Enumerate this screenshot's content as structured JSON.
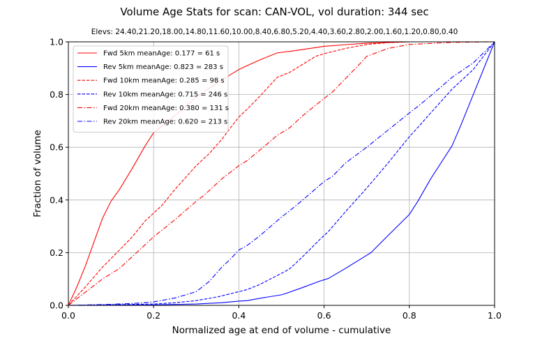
{
  "chart_data": {
    "type": "line",
    "title": "Volume Age Stats for scan: CAN-VOL, vol duration: 344 sec",
    "subtitle": "Elevs: 24.40,21.20,18.00,14.80,11.60,10.00,8.40,6.80,5.20,4.40,3.60,2.80,2.00,1.60,1.20,0.80,0.40",
    "xlabel": "Normalized age at end of volume - cumulative",
    "ylabel": "Fraction of volume",
    "xlim": [
      0.0,
      1.0
    ],
    "ylim": [
      0.0,
      1.0
    ],
    "xticks": [
      "0.0",
      "0.2",
      "0.4",
      "0.6",
      "0.8",
      "1.0"
    ],
    "yticks": [
      "0.0",
      "0.2",
      "0.4",
      "0.6",
      "0.8",
      "1.0"
    ],
    "grid": true,
    "legend_position": "top-left",
    "series": [
      {
        "name": "Fwd  5km meanAge: 0.177 = 61 s",
        "color": "#ff0000",
        "dash": "solid",
        "points": [
          [
            0,
            0
          ],
          [
            0.02,
            0.07
          ],
          [
            0.04,
            0.15
          ],
          [
            0.06,
            0.24
          ],
          [
            0.08,
            0.33
          ],
          [
            0.1,
            0.395
          ],
          [
            0.12,
            0.44
          ],
          [
            0.15,
            0.52
          ],
          [
            0.18,
            0.605
          ],
          [
            0.2,
            0.655
          ],
          [
            0.25,
            0.72
          ],
          [
            0.3,
            0.79
          ],
          [
            0.35,
            0.845
          ],
          [
            0.4,
            0.895
          ],
          [
            0.42,
            0.91
          ],
          [
            0.45,
            0.932
          ],
          [
            0.49,
            0.958
          ],
          [
            0.53,
            0.966
          ],
          [
            0.6,
            0.983
          ],
          [
            0.7,
            0.995
          ],
          [
            0.8,
            1.0
          ],
          [
            1.0,
            1.0
          ]
        ]
      },
      {
        "name": "Rev  5km meanAge: 0.823 = 283 s",
        "color": "#0000ff",
        "dash": "solid",
        "points": [
          [
            0,
            0
          ],
          [
            0.2,
            0.002
          ],
          [
            0.3,
            0.005
          ],
          [
            0.36,
            0.01
          ],
          [
            0.4,
            0.016
          ],
          [
            0.42,
            0.018
          ],
          [
            0.45,
            0.027
          ],
          [
            0.5,
            0.04
          ],
          [
            0.51,
            0.045
          ],
          [
            0.55,
            0.068
          ],
          [
            0.59,
            0.092
          ],
          [
            0.61,
            0.102
          ],
          [
            0.65,
            0.14
          ],
          [
            0.7,
            0.19
          ],
          [
            0.71,
            0.2
          ],
          [
            0.75,
            0.265
          ],
          [
            0.8,
            0.345
          ],
          [
            0.82,
            0.395
          ],
          [
            0.85,
            0.48
          ],
          [
            0.9,
            0.605
          ],
          [
            0.92,
            0.68
          ],
          [
            0.95,
            0.8
          ],
          [
            1.0,
            1.0
          ]
        ]
      },
      {
        "name": "Fwd 10km meanAge: 0.285 = 98 s",
        "color": "#ff0000",
        "dash": "dashed",
        "points": [
          [
            0,
            0
          ],
          [
            0.04,
            0.07
          ],
          [
            0.08,
            0.145
          ],
          [
            0.12,
            0.21
          ],
          [
            0.15,
            0.26
          ],
          [
            0.18,
            0.32
          ],
          [
            0.22,
            0.38
          ],
          [
            0.25,
            0.44
          ],
          [
            0.3,
            0.53
          ],
          [
            0.33,
            0.575
          ],
          [
            0.36,
            0.63
          ],
          [
            0.4,
            0.715
          ],
          [
            0.42,
            0.745
          ],
          [
            0.45,
            0.795
          ],
          [
            0.49,
            0.865
          ],
          [
            0.52,
            0.885
          ],
          [
            0.55,
            0.915
          ],
          [
            0.58,
            0.945
          ],
          [
            0.6,
            0.955
          ],
          [
            0.65,
            0.975
          ],
          [
            0.7,
            0.99
          ],
          [
            0.75,
            0.997
          ],
          [
            0.8,
            1.0
          ],
          [
            1.0,
            1.0
          ]
        ]
      },
      {
        "name": "Rev 10km meanAge: 0.715 = 246 s",
        "color": "#0000ff",
        "dash": "dashed",
        "points": [
          [
            0,
            0
          ],
          [
            0.1,
            0.002
          ],
          [
            0.2,
            0.005
          ],
          [
            0.25,
            0.01
          ],
          [
            0.3,
            0.018
          ],
          [
            0.35,
            0.032
          ],
          [
            0.4,
            0.052
          ],
          [
            0.42,
            0.06
          ],
          [
            0.45,
            0.08
          ],
          [
            0.48,
            0.105
          ],
          [
            0.51,
            0.13
          ],
          [
            0.52,
            0.14
          ],
          [
            0.55,
            0.185
          ],
          [
            0.59,
            0.25
          ],
          [
            0.61,
            0.28
          ],
          [
            0.65,
            0.355
          ],
          [
            0.7,
            0.445
          ],
          [
            0.75,
            0.54
          ],
          [
            0.8,
            0.64
          ],
          [
            0.82,
            0.675
          ],
          [
            0.85,
            0.73
          ],
          [
            0.9,
            0.82
          ],
          [
            0.95,
            0.895
          ],
          [
            1.0,
            1.0
          ]
        ]
      },
      {
        "name": "Fwd 20km meanAge: 0.380 = 131 s",
        "color": "#ff0000",
        "dash": "dashdot",
        "points": [
          [
            0,
            0
          ],
          [
            0.04,
            0.05
          ],
          [
            0.08,
            0.1
          ],
          [
            0.12,
            0.14
          ],
          [
            0.16,
            0.2
          ],
          [
            0.2,
            0.26
          ],
          [
            0.25,
            0.325
          ],
          [
            0.3,
            0.395
          ],
          [
            0.32,
            0.42
          ],
          [
            0.36,
            0.48
          ],
          [
            0.4,
            0.53
          ],
          [
            0.42,
            0.55
          ],
          [
            0.45,
            0.59
          ],
          [
            0.49,
            0.645
          ],
          [
            0.52,
            0.675
          ],
          [
            0.55,
            0.72
          ],
          [
            0.6,
            0.785
          ],
          [
            0.62,
            0.81
          ],
          [
            0.65,
            0.86
          ],
          [
            0.68,
            0.91
          ],
          [
            0.7,
            0.945
          ],
          [
            0.75,
            0.975
          ],
          [
            0.8,
            0.99
          ],
          [
            0.9,
            0.998
          ],
          [
            1.0,
            1.0
          ]
        ]
      },
      {
        "name": "Rev 20km meanAge: 0.620 = 213 s",
        "color": "#0000ff",
        "dash": "dashdot",
        "points": [
          [
            0,
            0
          ],
          [
            0.1,
            0.004
          ],
          [
            0.16,
            0.008
          ],
          [
            0.2,
            0.013
          ],
          [
            0.25,
            0.028
          ],
          [
            0.3,
            0.052
          ],
          [
            0.33,
            0.09
          ],
          [
            0.36,
            0.145
          ],
          [
            0.38,
            0.175
          ],
          [
            0.4,
            0.21
          ],
          [
            0.42,
            0.228
          ],
          [
            0.45,
            0.265
          ],
          [
            0.5,
            0.335
          ],
          [
            0.52,
            0.36
          ],
          [
            0.55,
            0.4
          ],
          [
            0.6,
            0.47
          ],
          [
            0.62,
            0.49
          ],
          [
            0.65,
            0.54
          ],
          [
            0.7,
            0.6
          ],
          [
            0.75,
            0.665
          ],
          [
            0.8,
            0.73
          ],
          [
            0.82,
            0.755
          ],
          [
            0.85,
            0.795
          ],
          [
            0.9,
            0.865
          ],
          [
            0.95,
            0.92
          ],
          [
            1.0,
            1.0
          ]
        ]
      }
    ]
  }
}
